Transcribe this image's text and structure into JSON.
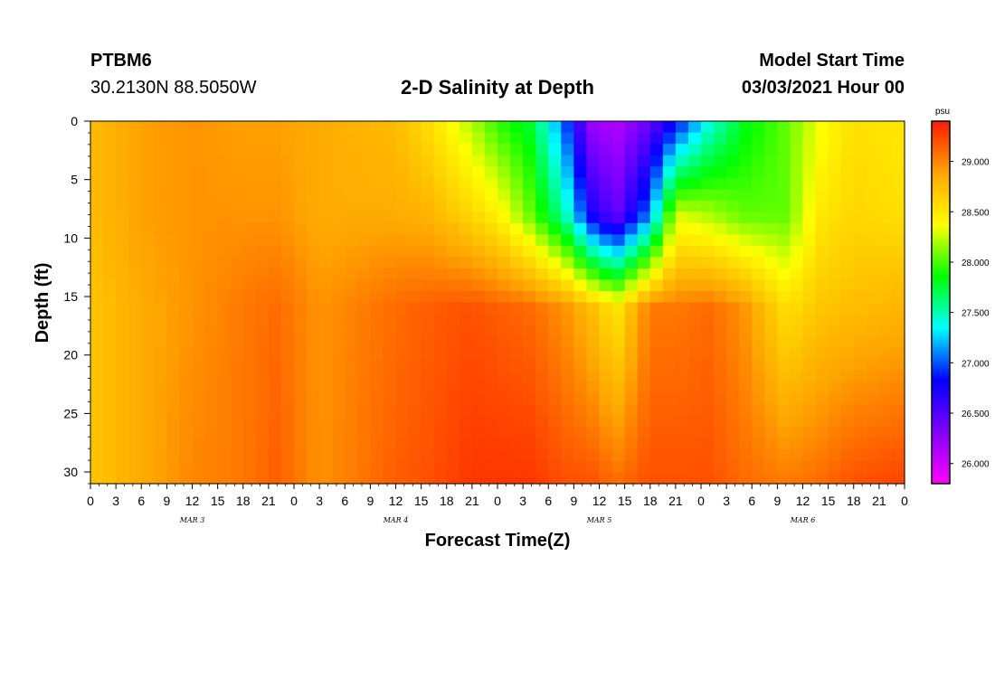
{
  "header": {
    "station_id": "PTBM6",
    "coordinates": "30.2130N 88.5050W",
    "title": "2-D Salinity at Depth",
    "model_start_label": "Model Start Time",
    "model_start_value": "03/03/2021 Hour 00"
  },
  "chart_data": {
    "type": "heatmap",
    "title": "2-D Salinity at Depth",
    "xlabel": "Forecast Time(Z)",
    "ylabel": "Depth (ft)",
    "x_unit": "hours since 03/03/2021 00Z",
    "x_range": [
      0,
      96
    ],
    "y_range": [
      0,
      31
    ],
    "y_inverted": true,
    "x_tick_values": [
      0,
      3,
      6,
      9,
      12,
      15,
      18,
      21,
      24,
      27,
      30,
      33,
      36,
      39,
      42,
      45,
      48,
      51,
      54,
      57,
      60,
      63,
      66,
      69,
      72,
      75,
      78,
      81,
      84,
      87,
      90,
      93,
      96
    ],
    "x_tick_labels": [
      "0",
      "3",
      "6",
      "9",
      "12",
      "15",
      "18",
      "21",
      "0",
      "3",
      "6",
      "9",
      "12",
      "15",
      "18",
      "21",
      "0",
      "3",
      "6",
      "9",
      "12",
      "15",
      "18",
      "21",
      "0",
      "3",
      "6",
      "9",
      "12",
      "15",
      "18",
      "21",
      "0"
    ],
    "date_labels": [
      {
        "hour": 12,
        "label": "MAR 3"
      },
      {
        "hour": 36,
        "label": "MAR 4"
      },
      {
        "hour": 60,
        "label": "MAR 5"
      },
      {
        "hour": 84,
        "label": "MAR 6"
      }
    ],
    "y_tick_values": [
      0,
      5,
      10,
      15,
      20,
      25,
      30
    ],
    "y_tick_labels": [
      "0",
      "5",
      "10",
      "15",
      "20",
      "25",
      "30"
    ],
    "colorbar": {
      "unit": "psu",
      "range": [
        25.8,
        29.4
      ],
      "tick_values": [
        26.0,
        26.5,
        27.0,
        27.5,
        28.0,
        28.5,
        29.0
      ],
      "tick_labels": [
        "26.000",
        "26.500",
        "27.000",
        "27.500",
        "28.000",
        "28.500",
        "29.000"
      ],
      "colors": [
        "#ff00ff",
        "#8000ff",
        "#0000ff",
        "#00ffff",
        "#00ff00",
        "#ffff00",
        "#ffa500",
        "#ff1a00"
      ]
    },
    "series": [
      {
        "name": "salinity",
        "hour": 0,
        "depths": [
          0,
          8,
          16,
          31
        ],
        "values": [
          28.75,
          28.75,
          28.7,
          28.7
        ]
      },
      {
        "name": "salinity",
        "hour": 6,
        "depths": [
          0,
          8,
          16,
          31
        ],
        "values": [
          28.9,
          28.9,
          28.85,
          28.85
        ]
      },
      {
        "name": "salinity",
        "hour": 12,
        "depths": [
          0,
          8,
          16,
          31
        ],
        "values": [
          28.95,
          28.95,
          28.95,
          29.0
        ]
      },
      {
        "name": "salinity",
        "hour": 18,
        "depths": [
          0,
          8,
          16,
          31
        ],
        "values": [
          28.9,
          28.95,
          29.05,
          29.05
        ]
      },
      {
        "name": "salinity",
        "hour": 22,
        "depths": [
          0,
          8,
          16,
          31
        ],
        "values": [
          28.9,
          28.95,
          29.1,
          29.15
        ]
      },
      {
        "name": "salinity",
        "hour": 27,
        "depths": [
          0,
          8,
          16,
          31
        ],
        "values": [
          28.85,
          28.85,
          28.95,
          28.95
        ]
      },
      {
        "name": "salinity",
        "hour": 36,
        "depths": [
          0,
          8,
          16,
          31
        ],
        "values": [
          28.75,
          28.85,
          29.1,
          29.15
        ]
      },
      {
        "name": "salinity",
        "hour": 40,
        "depths": [
          0,
          8,
          16,
          31
        ],
        "values": [
          28.55,
          28.8,
          29.15,
          29.2
        ]
      },
      {
        "name": "salinity",
        "hour": 45,
        "depths": [
          0,
          8,
          16,
          31
        ],
        "values": [
          28.2,
          28.6,
          29.2,
          29.3
        ]
      },
      {
        "name": "salinity",
        "hour": 48,
        "depths": [
          0,
          8,
          16,
          31
        ],
        "values": [
          27.95,
          28.45,
          29.15,
          29.3
        ]
      },
      {
        "name": "salinity",
        "hour": 52,
        "depths": [
          0,
          8,
          16,
          31
        ],
        "values": [
          27.75,
          28.05,
          29.1,
          29.3
        ]
      },
      {
        "name": "salinity",
        "hour": 56,
        "depths": [
          0,
          8,
          16,
          31
        ],
        "values": [
          27.0,
          27.5,
          28.95,
          29.2
        ]
      },
      {
        "name": "salinity",
        "hour": 59,
        "depths": [
          0,
          8,
          16,
          31
        ],
        "values": [
          26.2,
          26.75,
          28.75,
          29.2
        ]
      },
      {
        "name": "salinity",
        "hour": 62,
        "depths": [
          0,
          8,
          16,
          31
        ],
        "values": [
          26.1,
          26.4,
          28.5,
          29.1
        ]
      },
      {
        "name": "salinity",
        "hour": 66,
        "depths": [
          0,
          8,
          16,
          31
        ],
        "values": [
          26.4,
          27.1,
          29.05,
          29.2
        ]
      },
      {
        "name": "salinity",
        "hour": 69,
        "depths": [
          0,
          8,
          16,
          31
        ],
        "values": [
          26.8,
          28.3,
          29.05,
          29.2
        ]
      },
      {
        "name": "salinity",
        "hour": 73,
        "depths": [
          0,
          8,
          16,
          31
        ],
        "values": [
          27.4,
          28.2,
          29.1,
          29.2
        ]
      },
      {
        "name": "salinity",
        "hour": 77,
        "depths": [
          0,
          8,
          16,
          31
        ],
        "values": [
          27.8,
          28.05,
          28.95,
          29.1
        ]
      },
      {
        "name": "salinity",
        "hour": 82,
        "depths": [
          0,
          8,
          16,
          31
        ],
        "values": [
          28.05,
          28.05,
          28.55,
          29.05
        ]
      },
      {
        "name": "salinity",
        "hour": 86,
        "depths": [
          0,
          8,
          16,
          31
        ],
        "values": [
          28.35,
          28.5,
          28.7,
          29.1
        ]
      },
      {
        "name": "salinity",
        "hour": 90,
        "depths": [
          0,
          8,
          16,
          31
        ],
        "values": [
          28.55,
          28.6,
          28.75,
          29.2
        ]
      },
      {
        "name": "salinity",
        "hour": 96,
        "depths": [
          0,
          8,
          16,
          31
        ],
        "values": [
          28.5,
          28.55,
          28.8,
          29.25
        ]
      }
    ]
  }
}
